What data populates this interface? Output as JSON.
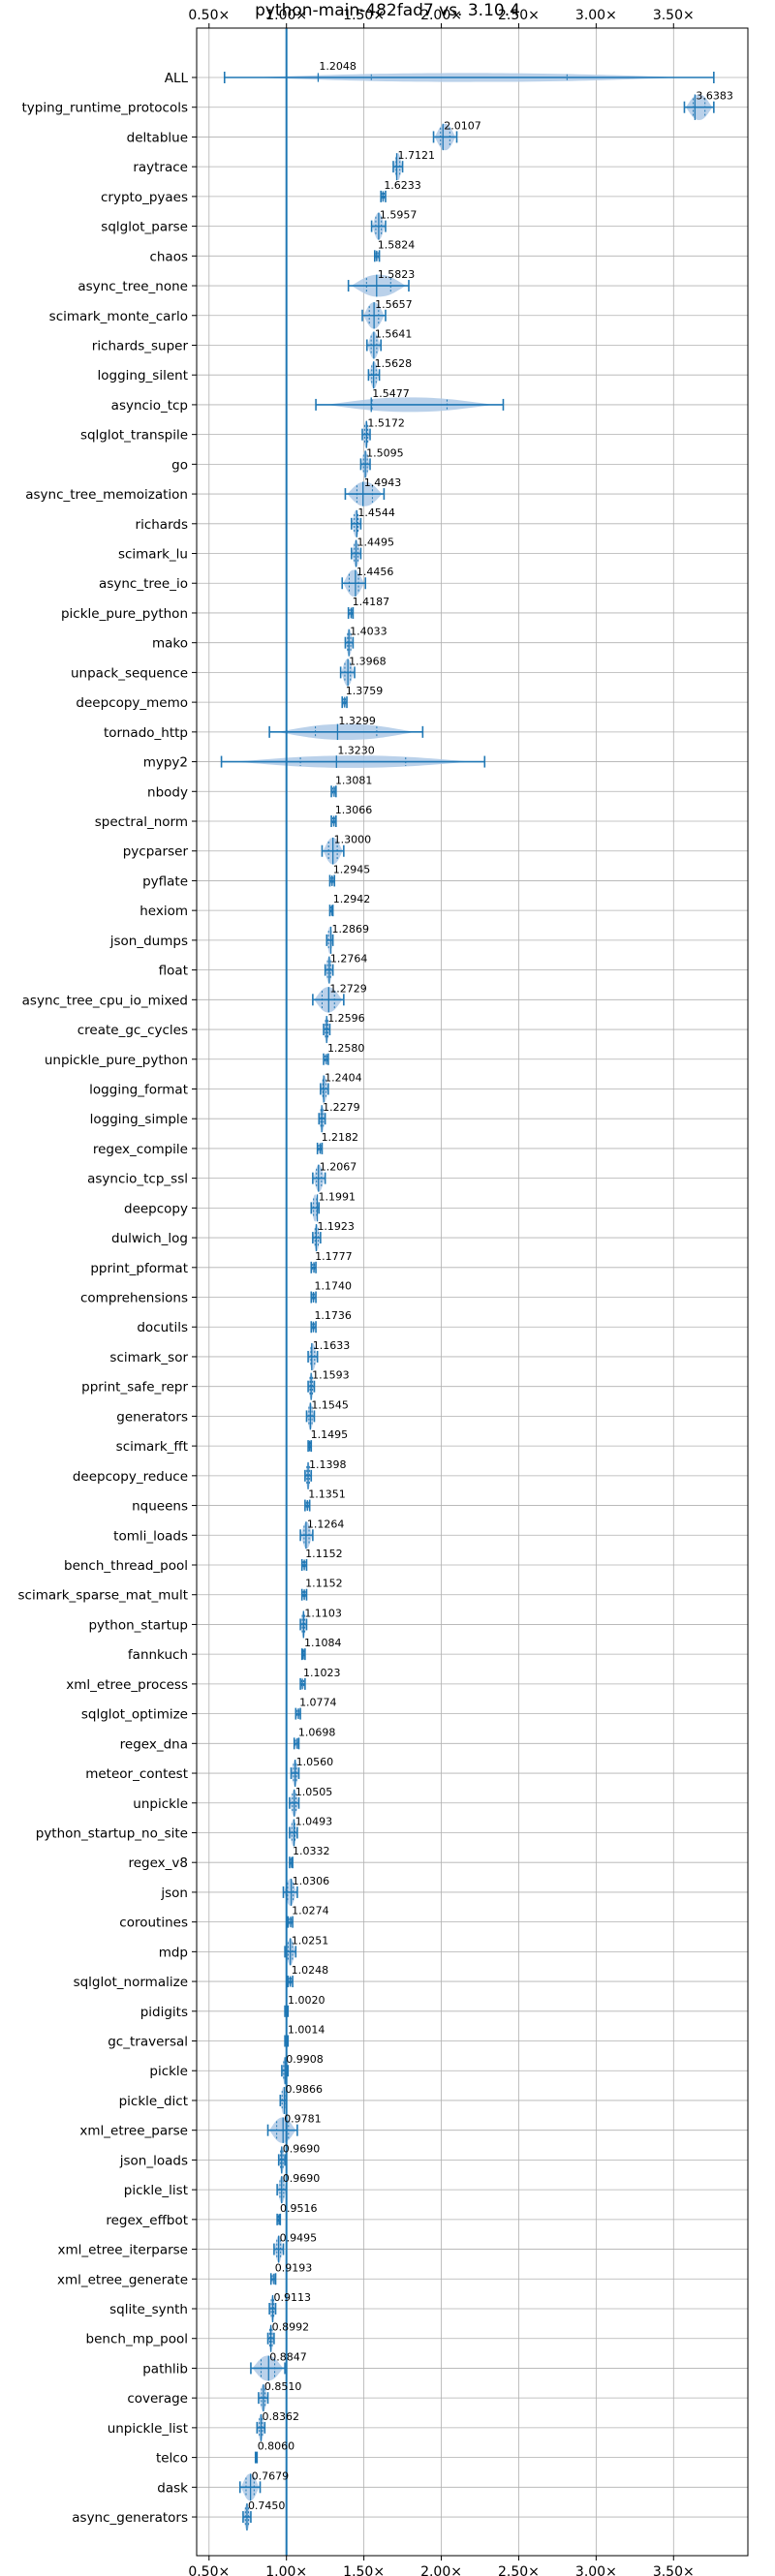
{
  "chart_data": {
    "type": "violin",
    "title": "python-main-482fad7 vs. 3.10.4",
    "xlabel": "",
    "ylabel": "",
    "xlim": [
      0.42,
      3.98
    ],
    "x_ticks": [
      "0.50×",
      "1.00×",
      "1.50×",
      "2.00×",
      "2.50×",
      "3.00×",
      "3.50×"
    ],
    "x_tick_values": [
      0.5,
      1.0,
      1.5,
      2.0,
      2.5,
      3.0,
      3.5
    ],
    "reference_line": 1.0,
    "grid": true,
    "colors": {
      "line": "#1f77b4",
      "fill": "#aec9e6",
      "grid": "#b0b0b0"
    },
    "categories": [
      "ALL",
      "typing_runtime_protocols",
      "deltablue",
      "raytrace",
      "crypto_pyaes",
      "sqlglot_parse",
      "chaos",
      "async_tree_none",
      "scimark_monte_carlo",
      "richards_super",
      "logging_silent",
      "asyncio_tcp",
      "sqlglot_transpile",
      "go",
      "async_tree_memoization",
      "richards",
      "scimark_lu",
      "async_tree_io",
      "pickle_pure_python",
      "mako",
      "unpack_sequence",
      "deepcopy_memo",
      "tornado_http",
      "mypy2",
      "nbody",
      "spectral_norm",
      "pycparser",
      "pyflate",
      "hexiom",
      "json_dumps",
      "float",
      "async_tree_cpu_io_mixed",
      "create_gc_cycles",
      "unpickle_pure_python",
      "logging_format",
      "logging_simple",
      "regex_compile",
      "asyncio_tcp_ssl",
      "deepcopy",
      "dulwich_log",
      "pprint_pformat",
      "comprehensions",
      "docutils",
      "scimark_sor",
      "pprint_safe_repr",
      "generators",
      "scimark_fft",
      "deepcopy_reduce",
      "nqueens",
      "tomli_loads",
      "bench_thread_pool",
      "scimark_sparse_mat_mult",
      "python_startup",
      "fannkuch",
      "xml_etree_process",
      "sqlglot_optimize",
      "regex_dna",
      "meteor_contest",
      "unpickle",
      "python_startup_no_site",
      "regex_v8",
      "json",
      "coroutines",
      "mdp",
      "sqlglot_normalize",
      "pidigits",
      "gc_traversal",
      "pickle",
      "pickle_dict",
      "xml_etree_parse",
      "json_loads",
      "pickle_list",
      "regex_effbot",
      "xml_etree_iterparse",
      "xml_etree_generate",
      "sqlite_synth",
      "bench_mp_pool",
      "pathlib",
      "coverage",
      "unpickle_list",
      "telco",
      "dask",
      "async_generators"
    ],
    "values": [
      1.2048,
      3.6383,
      2.0107,
      1.7121,
      1.6233,
      1.5957,
      1.5824,
      1.5823,
      1.5657,
      1.5641,
      1.5628,
      1.5477,
      1.5172,
      1.5095,
      1.4943,
      1.4544,
      1.4495,
      1.4456,
      1.4187,
      1.4033,
      1.3968,
      1.3759,
      1.3299,
      1.323,
      1.3081,
      1.3066,
      1.3,
      1.2945,
      1.2942,
      1.2869,
      1.2764,
      1.2729,
      1.2596,
      1.258,
      1.2404,
      1.2279,
      1.2182,
      1.2067,
      1.1991,
      1.1923,
      1.1777,
      1.174,
      1.1736,
      1.1633,
      1.1593,
      1.1545,
      1.1495,
      1.1398,
      1.1351,
      1.1264,
      1.1152,
      1.1152,
      1.1103,
      1.1084,
      1.1023,
      1.0774,
      1.0698,
      1.056,
      1.0505,
      1.0493,
      1.0332,
      1.0306,
      1.0274,
      1.0251,
      1.0248,
      1.002,
      1.0014,
      0.9908,
      0.9866,
      0.9781,
      0.969,
      0.969,
      0.9516,
      0.9495,
      0.9193,
      0.9113,
      0.8992,
      0.8847,
      0.851,
      0.8362,
      0.806,
      0.7679,
      0.745
    ],
    "value_labels": [
      "1.2048",
      "3.6383",
      "2.0107",
      "1.7121",
      "1.6233",
      "1.5957",
      "1.5824",
      "1.5823",
      "1.5657",
      "1.5641",
      "1.5628",
      "1.5477",
      "1.5172",
      "1.5095",
      "1.4943",
      "1.4544",
      "1.4495",
      "1.4456",
      "1.4187",
      "1.4033",
      "1.3968",
      "1.3759",
      "1.3299",
      "1.3230",
      "1.3081",
      "1.3066",
      "1.3000",
      "1.2945",
      "1.2942",
      "1.2869",
      "1.2764",
      "1.2729",
      "1.2596",
      "1.2580",
      "1.2404",
      "1.2279",
      "1.2182",
      "1.2067",
      "1.1991",
      "1.1923",
      "1.1777",
      "1.1740",
      "1.1736",
      "1.1633",
      "1.1593",
      "1.1545",
      "1.1495",
      "1.1398",
      "1.1351",
      "1.1264",
      "1.1152",
      "1.1152",
      "1.1103",
      "1.1084",
      "1.1023",
      "1.0774",
      "1.0698",
      "1.0560",
      "1.0505",
      "1.0493",
      "1.0332",
      "1.0306",
      "1.0274",
      "1.0251",
      "1.0248",
      "1.0020",
      "1.0014",
      "0.9908",
      "0.9866",
      "0.9781",
      "0.9690",
      "0.9690",
      "0.9516",
      "0.9495",
      "0.9193",
      "0.9113",
      "0.8992",
      "0.8847",
      "0.8510",
      "0.8362",
      "0.8060",
      "0.7679",
      "0.7450"
    ],
    "ranges": [
      [
        0.6,
        3.76
      ],
      [
        3.57,
        3.76
      ],
      [
        1.95,
        2.1
      ],
      [
        1.69,
        1.75
      ],
      [
        1.61,
        1.64
      ],
      [
        1.55,
        1.64
      ],
      [
        1.57,
        1.6
      ],
      [
        1.4,
        1.79
      ],
      [
        1.49,
        1.64
      ],
      [
        1.52,
        1.61
      ],
      [
        1.53,
        1.6
      ],
      [
        1.19,
        2.4
      ],
      [
        1.49,
        1.54
      ],
      [
        1.48,
        1.54
      ],
      [
        1.38,
        1.63
      ],
      [
        1.42,
        1.48
      ],
      [
        1.42,
        1.48
      ],
      [
        1.36,
        1.51
      ],
      [
        1.4,
        1.43
      ],
      [
        1.38,
        1.43
      ],
      [
        1.35,
        1.44
      ],
      [
        1.36,
        1.39
      ],
      [
        0.89,
        1.88
      ],
      [
        0.58,
        2.28
      ],
      [
        1.29,
        1.32
      ],
      [
        1.29,
        1.32
      ],
      [
        1.23,
        1.37
      ],
      [
        1.28,
        1.31
      ],
      [
        1.28,
        1.3
      ],
      [
        1.26,
        1.3
      ],
      [
        1.25,
        1.3
      ],
      [
        1.17,
        1.37
      ],
      [
        1.24,
        1.28
      ],
      [
        1.24,
        1.27
      ],
      [
        1.22,
        1.27
      ],
      [
        1.21,
        1.25
      ],
      [
        1.2,
        1.23
      ],
      [
        1.17,
        1.25
      ],
      [
        1.16,
        1.21
      ],
      [
        1.17,
        1.22
      ],
      [
        1.16,
        1.19
      ],
      [
        1.16,
        1.19
      ],
      [
        1.16,
        1.19
      ],
      [
        1.14,
        1.2
      ],
      [
        1.14,
        1.18
      ],
      [
        1.13,
        1.18
      ],
      [
        1.14,
        1.16
      ],
      [
        1.12,
        1.16
      ],
      [
        1.12,
        1.15
      ],
      [
        1.09,
        1.17
      ],
      [
        1.1,
        1.13
      ],
      [
        1.1,
        1.13
      ],
      [
        1.09,
        1.13
      ],
      [
        1.1,
        1.12
      ],
      [
        1.09,
        1.12
      ],
      [
        1.06,
        1.09
      ],
      [
        1.05,
        1.08
      ],
      [
        1.03,
        1.08
      ],
      [
        1.02,
        1.08
      ],
      [
        1.02,
        1.07
      ],
      [
        1.02,
        1.04
      ],
      [
        0.98,
        1.07
      ],
      [
        1.01,
        1.04
      ],
      [
        0.99,
        1.06
      ],
      [
        1.01,
        1.04
      ],
      [
        0.99,
        1.01
      ],
      [
        0.99,
        1.01
      ],
      [
        0.97,
        1.01
      ],
      [
        0.96,
        1.0
      ],
      [
        0.88,
        1.07
      ],
      [
        0.95,
        0.99
      ],
      [
        0.94,
        1.0
      ],
      [
        0.94,
        0.96
      ],
      [
        0.92,
        0.98
      ],
      [
        0.9,
        0.93
      ],
      [
        0.89,
        0.93
      ],
      [
        0.88,
        0.92
      ],
      [
        0.77,
        0.99
      ],
      [
        0.82,
        0.88
      ],
      [
        0.81,
        0.86
      ],
      [
        0.8,
        0.81
      ],
      [
        0.7,
        0.83
      ],
      [
        0.72,
        0.77
      ]
    ]
  }
}
